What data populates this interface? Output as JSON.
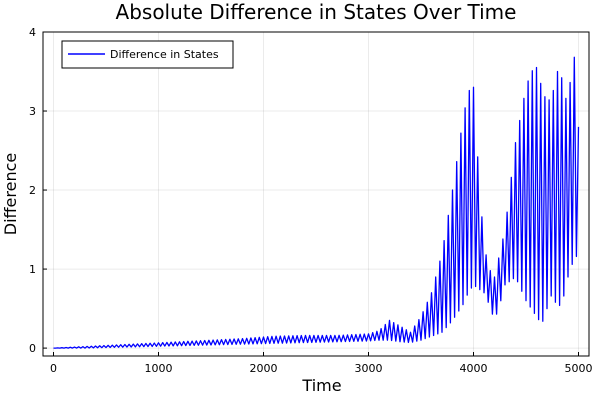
{
  "chart_data": {
    "type": "line",
    "title": "Absolute Difference in States Over Time",
    "xlabel": "Time",
    "ylabel": "Difference",
    "xlim": [
      -100,
      5100
    ],
    "ylim": [
      -0.1,
      4.0
    ],
    "xticks": [
      0,
      1000,
      2000,
      3000,
      4000,
      5000
    ],
    "xtick_labels": [
      "0",
      "1000",
      "2000",
      "3000",
      "4000",
      "5000"
    ],
    "yticks": [
      0,
      1,
      2,
      3,
      4
    ],
    "ytick_labels": [
      "0",
      "1",
      "2",
      "3",
      "4"
    ],
    "grid": true,
    "legend_position": "top-left",
    "series": [
      {
        "name": "Difference in States",
        "color": "#0000ff",
        "oscillation_period": 40,
        "x": [
          0,
          300,
          600,
          900,
          1200,
          1500,
          1800,
          2100,
          2400,
          2700,
          3000,
          3100,
          3200,
          3300,
          3400,
          3500,
          3600,
          3700,
          3800,
          3900,
          3950,
          4000,
          4050,
          4100,
          4150,
          4200,
          4250,
          4300,
          4400,
          4500,
          4550,
          4600,
          4650,
          4700,
          4750,
          4800,
          4850,
          4900,
          4950,
          5000
        ],
        "upper": [
          0.0,
          0.02,
          0.04,
          0.06,
          0.08,
          0.1,
          0.12,
          0.15,
          0.16,
          0.16,
          0.18,
          0.22,
          0.35,
          0.28,
          0.2,
          0.4,
          0.7,
          1.2,
          2.0,
          2.9,
          3.25,
          3.3,
          2.2,
          1.3,
          1.0,
          0.9,
          1.2,
          1.5,
          2.6,
          3.3,
          3.5,
          3.55,
          3.3,
          3.1,
          3.2,
          3.5,
          3.4,
          3.0,
          3.9,
          2.8
        ],
        "lower": [
          0.0,
          0.0,
          0.01,
          0.02,
          0.03,
          0.04,
          0.05,
          0.06,
          0.07,
          0.08,
          0.09,
          0.1,
          0.1,
          0.08,
          0.07,
          0.1,
          0.15,
          0.2,
          0.35,
          0.55,
          0.7,
          0.8,
          0.75,
          0.7,
          0.55,
          0.35,
          0.55,
          0.8,
          0.9,
          0.6,
          0.5,
          0.4,
          0.3,
          0.5,
          0.7,
          0.5,
          0.6,
          0.9,
          1.1,
          1.2
        ]
      }
    ]
  }
}
